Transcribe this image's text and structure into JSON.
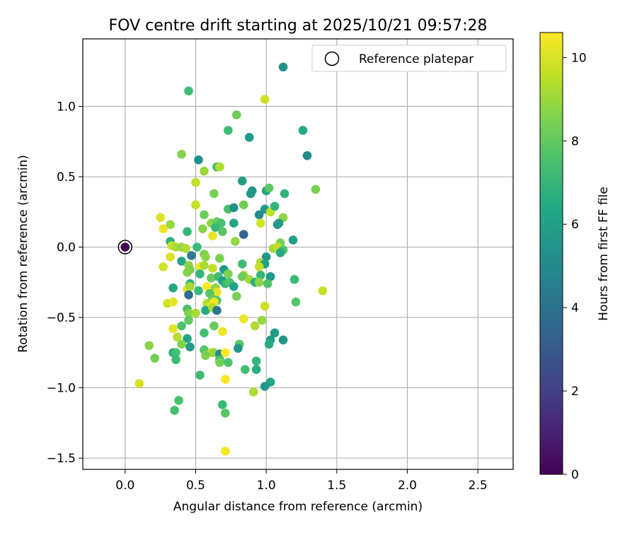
{
  "chart_data": {
    "type": "scatter",
    "title": "FOV centre drift starting at 2025/10/21 09:57:28",
    "xlabel": "Angular distance from reference (arcmin)",
    "ylabel": "Rotation from reference (arcmin)",
    "xlim": [
      -0.3,
      2.75
    ],
    "ylim": [
      -1.58,
      1.48
    ],
    "xticks": [
      0.0,
      0.5,
      1.0,
      1.5,
      2.0,
      2.5
    ],
    "xtick_labels": [
      "0.0",
      "0.5",
      "1.0",
      "1.5",
      "2.0",
      "2.5"
    ],
    "yticks": [
      -1.5,
      -1.0,
      -0.5,
      0.0,
      0.5,
      1.0
    ],
    "ytick_labels": [
      "−1.5",
      "−1.0",
      "−0.5",
      "0.0",
      "0.5",
      "1.0"
    ],
    "grid": true,
    "legend": {
      "placement": "upper right",
      "entries": [
        "Reference platepar"
      ]
    },
    "reference_point": {
      "x": 0.0,
      "y": 0.0,
      "hours": 0.0
    },
    "colorbar": {
      "label": "Hours from first FF file",
      "colormap": "viridis",
      "range": [
        0,
        10.6
      ],
      "ticks": [
        0,
        2,
        4,
        6,
        8,
        10
      ],
      "tick_labels": [
        "0",
        "2",
        "4",
        "6",
        "8",
        "10"
      ]
    },
    "points": [
      {
        "x": 0.45,
        "y": 1.11,
        "hours": 7.3
      },
      {
        "x": 1.12,
        "y": 1.28,
        "hours": 5.2
      },
      {
        "x": 0.99,
        "y": 1.05,
        "hours": 9.8
      },
      {
        "x": 0.79,
        "y": 0.94,
        "hours": 8.2
      },
      {
        "x": 0.73,
        "y": 0.83,
        "hours": 7.2
      },
      {
        "x": 0.88,
        "y": 0.78,
        "hours": 5.8
      },
      {
        "x": 1.26,
        "y": 0.83,
        "hours": 6.4
      },
      {
        "x": 1.29,
        "y": 0.65,
        "hours": 5.0
      },
      {
        "x": 0.4,
        "y": 0.66,
        "hours": 8.6
      },
      {
        "x": 0.52,
        "y": 0.62,
        "hours": 5.3
      },
      {
        "x": 0.65,
        "y": 0.57,
        "hours": 7.4
      },
      {
        "x": 0.67,
        "y": 0.57,
        "hours": 9.3
      },
      {
        "x": 0.56,
        "y": 0.54,
        "hours": 9.0
      },
      {
        "x": 0.83,
        "y": 0.47,
        "hours": 5.9
      },
      {
        "x": 0.5,
        "y": 0.46,
        "hours": 9.6
      },
      {
        "x": 0.9,
        "y": 0.4,
        "hours": 5.5
      },
      {
        "x": 0.89,
        "y": 0.38,
        "hours": 5.6
      },
      {
        "x": 1.0,
        "y": 0.4,
        "hours": 6.1
      },
      {
        "x": 1.02,
        "y": 0.42,
        "hours": 7.9
      },
      {
        "x": 1.13,
        "y": 0.38,
        "hours": 6.8
      },
      {
        "x": 1.35,
        "y": 0.41,
        "hours": 8.5
      },
      {
        "x": 0.63,
        "y": 0.38,
        "hours": 8.4
      },
      {
        "x": 0.5,
        "y": 0.3,
        "hours": 9.7
      },
      {
        "x": 0.84,
        "y": 0.3,
        "hours": 8.3
      },
      {
        "x": 0.73,
        "y": 0.27,
        "hours": 7.5
      },
      {
        "x": 0.77,
        "y": 0.28,
        "hours": 5.3
      },
      {
        "x": 0.99,
        "y": 0.27,
        "hours": 5.7
      },
      {
        "x": 1.03,
        "y": 0.25,
        "hours": 9.6
      },
      {
        "x": 1.06,
        "y": 0.29,
        "hours": 6.9
      },
      {
        "x": 0.56,
        "y": 0.23,
        "hours": 8.2
      },
      {
        "x": 0.95,
        "y": 0.23,
        "hours": 5.1
      },
      {
        "x": 1.12,
        "y": 0.21,
        "hours": 8.8
      },
      {
        "x": 0.25,
        "y": 0.21,
        "hours": 10.0
      },
      {
        "x": 0.61,
        "y": 0.17,
        "hours": 8.8
      },
      {
        "x": 0.65,
        "y": 0.18,
        "hours": 8.1
      },
      {
        "x": 0.68,
        "y": 0.17,
        "hours": 7.5
      },
      {
        "x": 0.77,
        "y": 0.17,
        "hours": 6.2
      },
      {
        "x": 0.96,
        "y": 0.17,
        "hours": 9.9
      },
      {
        "x": 1.08,
        "y": 0.16,
        "hours": 5.2
      },
      {
        "x": 1.09,
        "y": 0.17,
        "hours": 5.8
      },
      {
        "x": 0.32,
        "y": 0.16,
        "hours": 8.9
      },
      {
        "x": 0.27,
        "y": 0.13,
        "hours": 10.3
      },
      {
        "x": 0.55,
        "y": 0.13,
        "hours": 8.7
      },
      {
        "x": 0.64,
        "y": 0.14,
        "hours": 7.1
      },
      {
        "x": 0.69,
        "y": 0.11,
        "hours": 7.8
      },
      {
        "x": 0.44,
        "y": 0.11,
        "hours": 7.0
      },
      {
        "x": 0.84,
        "y": 0.09,
        "hours": 3.4
      },
      {
        "x": 0.62,
        "y": 0.08,
        "hours": 10.2
      },
      {
        "x": 0.78,
        "y": 0.04,
        "hours": 8.9
      },
      {
        "x": 0.32,
        "y": 0.04,
        "hours": 6.6
      },
      {
        "x": 1.19,
        "y": 0.05,
        "hours": 6.0
      },
      {
        "x": 1.1,
        "y": 0.03,
        "hours": 8.4
      },
      {
        "x": 0.33,
        "y": 0.01,
        "hours": 9.7
      },
      {
        "x": 0.36,
        "y": 0.0,
        "hours": 9.2
      },
      {
        "x": 0.4,
        "y": 0.0,
        "hours": 8.9
      },
      {
        "x": 0.51,
        "y": 0.0,
        "hours": 7.1
      },
      {
        "x": 0.43,
        "y": -0.01,
        "hours": 9.3
      },
      {
        "x": 1.05,
        "y": -0.01,
        "hours": 9.1
      },
      {
        "x": 1.08,
        "y": 0.0,
        "hours": 9.6
      },
      {
        "x": 1.12,
        "y": -0.02,
        "hours": 7.6
      },
      {
        "x": 0.47,
        "y": -0.06,
        "hours": 4.4
      },
      {
        "x": 0.56,
        "y": -0.05,
        "hours": 8.5
      },
      {
        "x": 0.57,
        "y": -0.07,
        "hours": 8.7
      },
      {
        "x": 0.67,
        "y": -0.08,
        "hours": 8.4
      },
      {
        "x": 1.0,
        "y": -0.07,
        "hours": 5.7
      },
      {
        "x": 1.1,
        "y": -0.04,
        "hours": 6.5
      },
      {
        "x": 0.32,
        "y": -0.07,
        "hours": 10.0
      },
      {
        "x": 0.4,
        "y": -0.1,
        "hours": 6.2
      },
      {
        "x": 0.83,
        "y": -0.12,
        "hours": 7.3
      },
      {
        "x": 0.96,
        "y": -0.11,
        "hours": 9.2
      },
      {
        "x": 0.99,
        "y": -0.12,
        "hours": 6.0
      },
      {
        "x": 0.27,
        "y": -0.14,
        "hours": 9.9
      },
      {
        "x": 0.45,
        "y": -0.13,
        "hours": 8.8
      },
      {
        "x": 0.46,
        "y": -0.16,
        "hours": 8.5
      },
      {
        "x": 0.53,
        "y": -0.14,
        "hours": 10.4
      },
      {
        "x": 0.56,
        "y": -0.13,
        "hours": 9.2
      },
      {
        "x": 0.62,
        "y": -0.15,
        "hours": 9.6
      },
      {
        "x": 0.7,
        "y": -0.16,
        "hours": 5.7
      },
      {
        "x": 0.95,
        "y": -0.14,
        "hours": 9.7
      },
      {
        "x": 0.44,
        "y": -0.18,
        "hours": 8.6
      },
      {
        "x": 0.53,
        "y": -0.19,
        "hours": 6.9
      },
      {
        "x": 0.73,
        "y": -0.19,
        "hours": 8.5
      },
      {
        "x": 0.84,
        "y": -0.2,
        "hours": 9.0
      },
      {
        "x": 0.96,
        "y": -0.2,
        "hours": 7.0
      },
      {
        "x": 1.03,
        "y": -0.21,
        "hours": 5.7
      },
      {
        "x": 0.61,
        "y": -0.22,
        "hours": 8.1
      },
      {
        "x": 0.66,
        "y": -0.21,
        "hours": 7.3
      },
      {
        "x": 0.69,
        "y": -0.24,
        "hours": 5.8
      },
      {
        "x": 0.83,
        "y": -0.21,
        "hours": 8.2
      },
      {
        "x": 0.88,
        "y": -0.23,
        "hours": 9.1
      },
      {
        "x": 0.92,
        "y": -0.25,
        "hours": 6.6
      },
      {
        "x": 0.95,
        "y": -0.25,
        "hours": 8.8
      },
      {
        "x": 1.01,
        "y": -0.26,
        "hours": 7.6
      },
      {
        "x": 1.2,
        "y": -0.23,
        "hours": 7.1
      },
      {
        "x": 0.46,
        "y": -0.26,
        "hours": 6.8
      },
      {
        "x": 0.71,
        "y": -0.26,
        "hours": 7.0
      },
      {
        "x": 0.74,
        "y": -0.25,
        "hours": 7.6
      },
      {
        "x": 0.77,
        "y": -0.28,
        "hours": 6.1
      },
      {
        "x": 0.34,
        "y": -0.29,
        "hours": 6.3
      },
      {
        "x": 0.44,
        "y": -0.3,
        "hours": 10.1
      },
      {
        "x": 0.46,
        "y": -0.28,
        "hours": 9.1
      },
      {
        "x": 0.58,
        "y": -0.28,
        "hours": 10.6
      },
      {
        "x": 0.64,
        "y": -0.29,
        "hours": 8.8
      },
      {
        "x": 0.65,
        "y": -0.32,
        "hours": 10.2
      },
      {
        "x": 0.52,
        "y": -0.31,
        "hours": 7.1
      },
      {
        "x": 0.6,
        "y": -0.33,
        "hours": 7.8
      },
      {
        "x": 0.45,
        "y": -0.34,
        "hours": 3.8
      },
      {
        "x": 0.79,
        "y": -0.35,
        "hours": 8.4
      },
      {
        "x": 1.4,
        "y": -0.31,
        "hours": 9.7
      },
      {
        "x": 0.62,
        "y": -0.37,
        "hours": 8.0
      },
      {
        "x": 0.65,
        "y": -0.38,
        "hours": 7.7
      },
      {
        "x": 0.3,
        "y": -0.4,
        "hours": 9.9
      },
      {
        "x": 0.34,
        "y": -0.39,
        "hours": 10.2
      },
      {
        "x": 0.58,
        "y": -0.4,
        "hours": 9.4
      },
      {
        "x": 0.61,
        "y": -0.42,
        "hours": 10.1
      },
      {
        "x": 0.63,
        "y": -0.39,
        "hours": 10.4
      },
      {
        "x": 0.99,
        "y": -0.42,
        "hours": 9.8
      },
      {
        "x": 1.21,
        "y": -0.39,
        "hours": 7.7
      },
      {
        "x": 0.44,
        "y": -0.44,
        "hours": 7.5
      },
      {
        "x": 0.57,
        "y": -0.45,
        "hours": 6.5
      },
      {
        "x": 0.62,
        "y": -0.43,
        "hours": 9.3
      },
      {
        "x": 0.65,
        "y": -0.45,
        "hours": 4.1
      },
      {
        "x": 0.45,
        "y": -0.47,
        "hours": 8.6
      },
      {
        "x": 0.5,
        "y": -0.47,
        "hours": 9.2
      },
      {
        "x": 0.45,
        "y": -0.52,
        "hours": 8.0
      },
      {
        "x": 0.84,
        "y": -0.51,
        "hours": 10.3
      },
      {
        "x": 0.97,
        "y": -0.52,
        "hours": 8.9
      },
      {
        "x": 0.4,
        "y": -0.56,
        "hours": 7.6
      },
      {
        "x": 0.63,
        "y": -0.56,
        "hours": 8.1
      },
      {
        "x": 0.92,
        "y": -0.56,
        "hours": 9.3
      },
      {
        "x": 0.34,
        "y": -0.58,
        "hours": 10.2
      },
      {
        "x": 0.56,
        "y": -0.61,
        "hours": 7.4
      },
      {
        "x": 0.69,
        "y": -0.6,
        "hours": 10.3
      },
      {
        "x": 1.06,
        "y": -0.61,
        "hours": 5.6
      },
      {
        "x": 0.37,
        "y": -0.64,
        "hours": 9.4
      },
      {
        "x": 0.44,
        "y": -0.65,
        "hours": 6.2
      },
      {
        "x": 1.03,
        "y": -0.66,
        "hours": 5.9
      },
      {
        "x": 1.12,
        "y": -0.66,
        "hours": 5.5
      },
      {
        "x": 1.02,
        "y": -0.69,
        "hours": 6.5
      },
      {
        "x": 0.4,
        "y": -0.69,
        "hours": 8.6
      },
      {
        "x": 0.46,
        "y": -0.71,
        "hours": 5.8
      },
      {
        "x": 0.17,
        "y": -0.7,
        "hours": 8.7
      },
      {
        "x": 0.81,
        "y": -0.69,
        "hours": 7.8
      },
      {
        "x": 0.8,
        "y": -0.72,
        "hours": 5.5
      },
      {
        "x": 0.56,
        "y": -0.73,
        "hours": 7.8
      },
      {
        "x": 0.61,
        "y": -0.75,
        "hours": 9.6
      },
      {
        "x": 0.63,
        "y": -0.75,
        "hours": 8.9
      },
      {
        "x": 0.67,
        "y": -0.76,
        "hours": 5.0
      },
      {
        "x": 0.71,
        "y": -0.75,
        "hours": 10.6
      },
      {
        "x": 0.34,
        "y": -0.75,
        "hours": 6.4
      },
      {
        "x": 0.36,
        "y": -0.75,
        "hours": 7.4
      },
      {
        "x": 0.36,
        "y": -0.8,
        "hours": 7.2
      },
      {
        "x": 0.21,
        "y": -0.79,
        "hours": 8.4
      },
      {
        "x": 0.57,
        "y": -0.77,
        "hours": 8.5
      },
      {
        "x": 0.67,
        "y": -0.8,
        "hours": 7.4
      },
      {
        "x": 0.67,
        "y": -0.82,
        "hours": 8.4
      },
      {
        "x": 0.73,
        "y": -0.82,
        "hours": 7.6
      },
      {
        "x": 0.93,
        "y": -0.81,
        "hours": 6.9
      },
      {
        "x": 0.85,
        "y": -0.87,
        "hours": 7.3
      },
      {
        "x": 0.93,
        "y": -0.87,
        "hours": 6.6
      },
      {
        "x": 0.53,
        "y": -0.91,
        "hours": 7.2
      },
      {
        "x": 0.71,
        "y": -0.94,
        "hours": 10.5
      },
      {
        "x": 1.03,
        "y": -0.96,
        "hours": 6.3
      },
      {
        "x": 0.1,
        "y": -0.97,
        "hours": 9.9
      },
      {
        "x": 0.99,
        "y": -0.99,
        "hours": 5.6
      },
      {
        "x": 0.91,
        "y": -1.03,
        "hours": 9.3
      },
      {
        "x": 0.38,
        "y": -1.09,
        "hours": 7.5
      },
      {
        "x": 0.69,
        "y": -1.12,
        "hours": 7.1
      },
      {
        "x": 0.35,
        "y": -1.16,
        "hours": 7.4
      },
      {
        "x": 0.71,
        "y": -1.18,
        "hours": 7.8
      },
      {
        "x": 0.71,
        "y": -1.45,
        "hours": 10.5
      }
    ]
  }
}
